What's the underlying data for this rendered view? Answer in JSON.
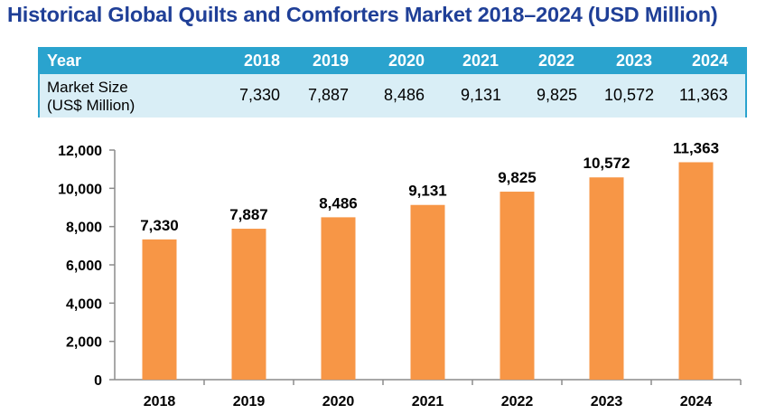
{
  "title": "Historical Global Quilts and Comforters Market 2018–2024 (USD Million)",
  "table": {
    "header_label": "Year",
    "row_label_line1": "Market Size",
    "row_label_line2": "(US$ Million)",
    "years": [
      "2018",
      "2019",
      "2020",
      "2021",
      "2022",
      "2023",
      "2024"
    ],
    "values": [
      "7,330",
      "7,887",
      "8,486",
      "9,131",
      "9,825",
      "10,572",
      "11,363"
    ]
  },
  "colors": {
    "title": "#1f3f97",
    "table_header": "#2aa3ce",
    "table_body": "#d9eef6",
    "bar": "#f79646"
  },
  "chart_data": {
    "type": "bar",
    "categories": [
      "2018",
      "2019",
      "2020",
      "2021",
      "2022",
      "2023",
      "2024"
    ],
    "values": [
      7330,
      7887,
      8486,
      9131,
      9825,
      10572,
      11363
    ],
    "data_labels": [
      "7,330",
      "7,887",
      "8,486",
      "9,131",
      "9,825",
      "10,572",
      "11,363"
    ],
    "ylim": [
      0,
      12000
    ],
    "yticks": [
      0,
      2000,
      4000,
      6000,
      8000,
      10000,
      12000
    ],
    "ytick_labels": [
      "0",
      "2,000",
      "4,000",
      "6,000",
      "8,000",
      "10,000",
      "12,000"
    ],
    "xlabel": "",
    "ylabel": "",
    "grid": false,
    "legend": "none"
  }
}
